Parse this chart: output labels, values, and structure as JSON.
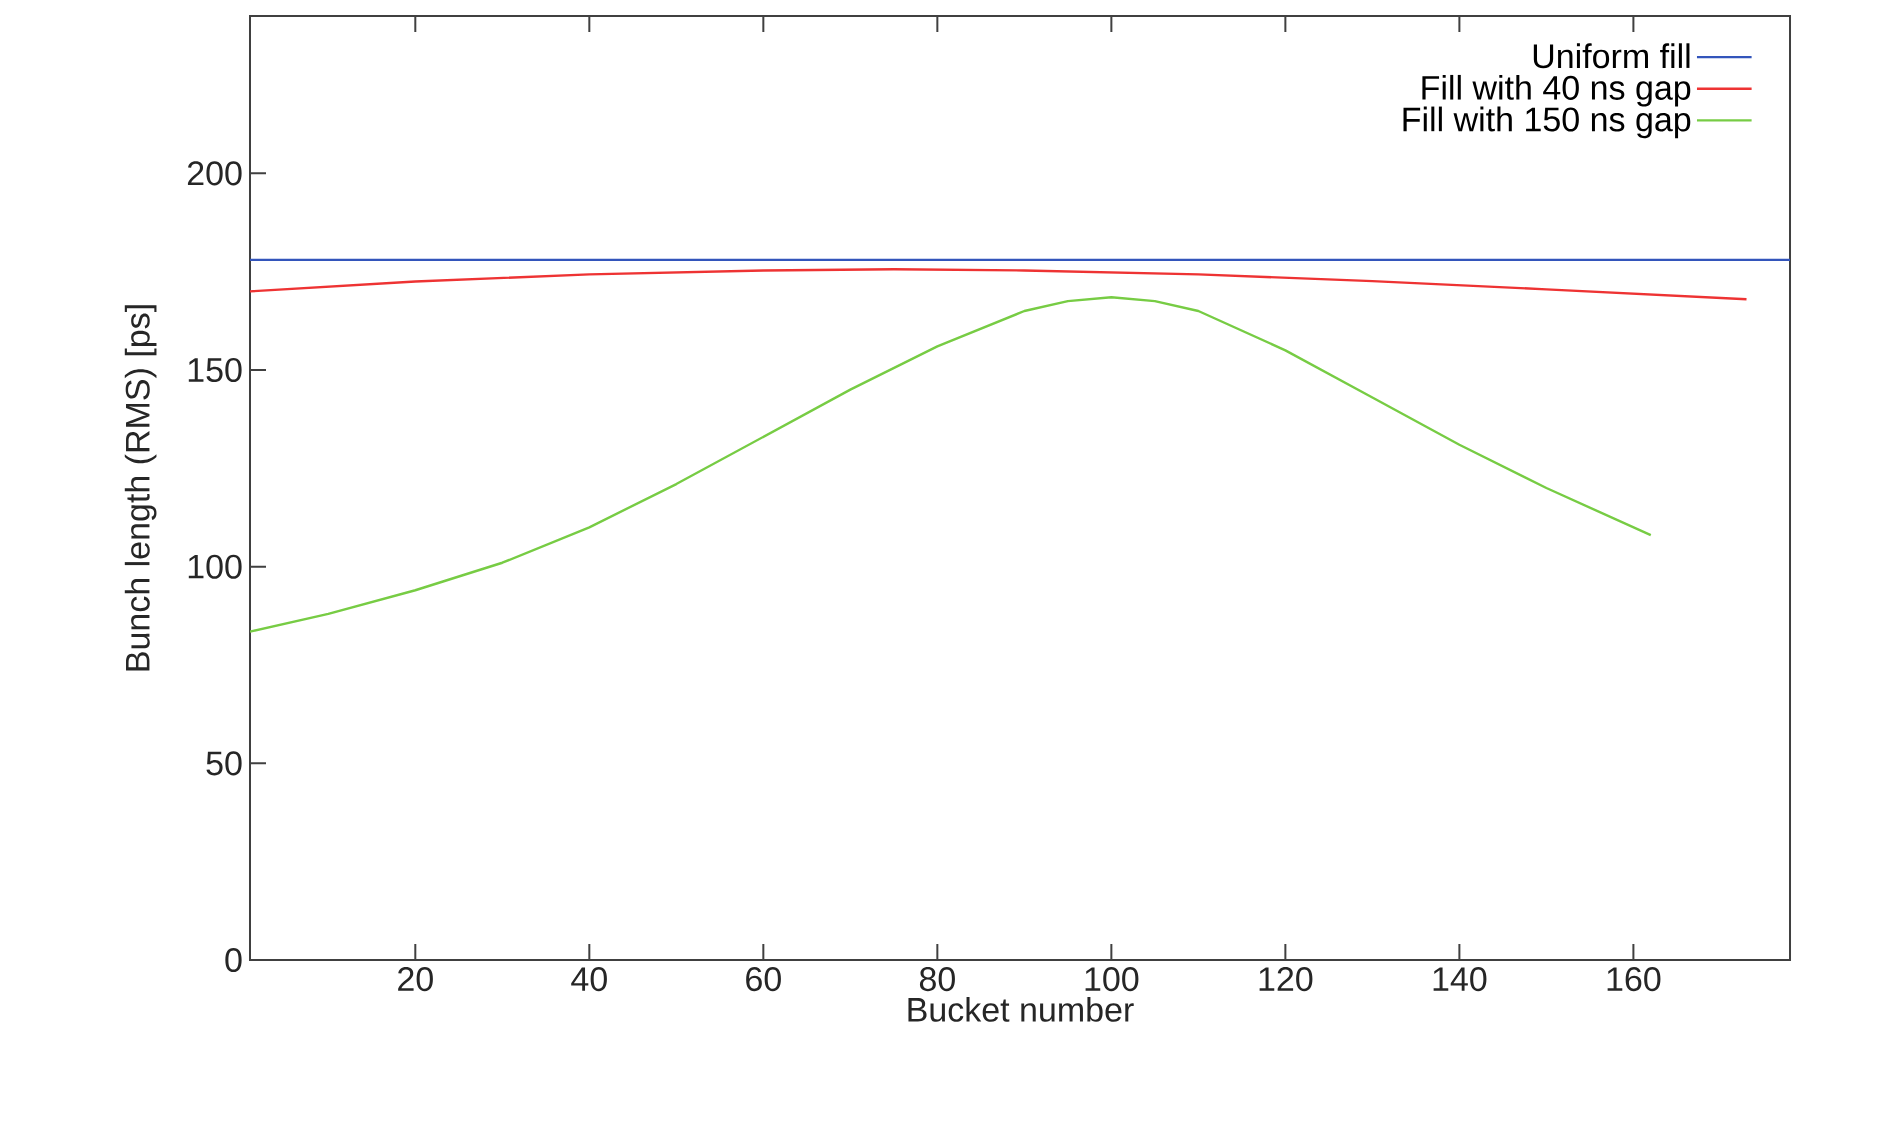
{
  "chart_data": {
    "type": "line",
    "xlabel": "Bucket number",
    "ylabel": "Bunch length (RMS) [ps]",
    "xlim": [
      1,
      178
    ],
    "ylim": [
      0,
      240
    ],
    "xticks": [
      20,
      40,
      60,
      80,
      100,
      120,
      140,
      160
    ],
    "yticks": [
      0,
      50,
      100,
      150,
      200
    ],
    "legend": "top right",
    "series": [
      {
        "name": "Uniform fill",
        "color": "#3355bb",
        "x": [
          1,
          178
        ],
        "values": [
          178,
          178
        ]
      },
      {
        "name": "Fill with 40 ns gap",
        "color": "#ee3333",
        "x": [
          1,
          20,
          40,
          60,
          75,
          90,
          110,
          130,
          150,
          173
        ],
        "values": [
          170,
          172.5,
          174.3,
          175.3,
          175.6,
          175.3,
          174.3,
          172.6,
          170.5,
          168
        ]
      },
      {
        "name": "Fill with 150 ns gap",
        "color": "#77cc44",
        "x": [
          1,
          10,
          20,
          30,
          40,
          50,
          60,
          70,
          80,
          90,
          95,
          100,
          105,
          110,
          120,
          130,
          140,
          150,
          162
        ],
        "values": [
          83.5,
          88,
          94,
          101,
          110,
          121,
          133,
          145,
          156,
          165,
          167.5,
          168.5,
          167.5,
          165,
          155,
          143,
          131,
          120,
          108
        ]
      }
    ]
  }
}
